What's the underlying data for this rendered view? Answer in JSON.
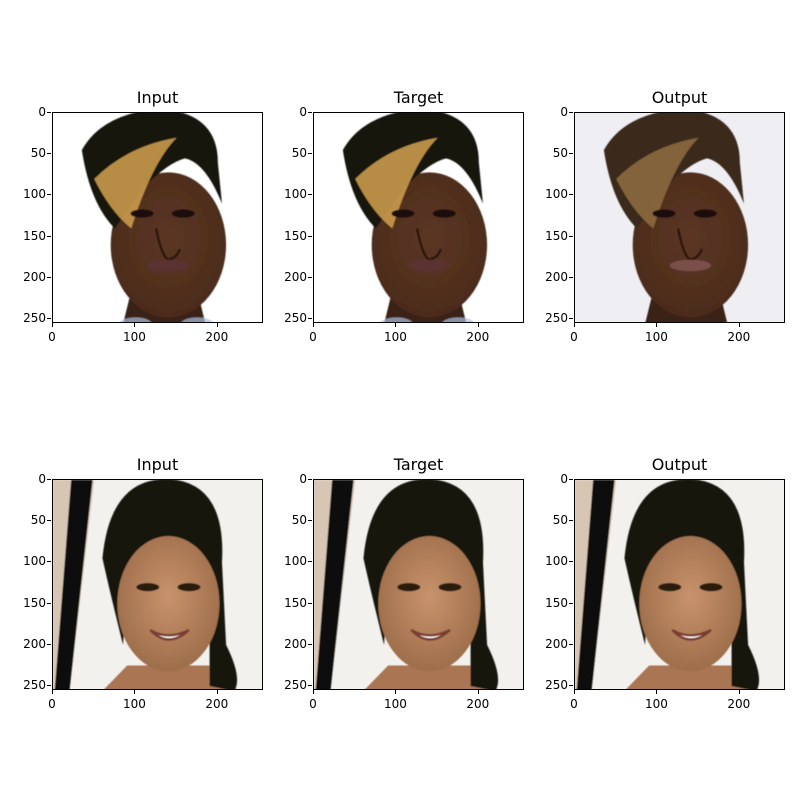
{
  "panels": [
    {
      "title": "Input",
      "variant": "face1"
    },
    {
      "title": "Target",
      "variant": "face1"
    },
    {
      "title": "Output",
      "variant": "face1_soft"
    },
    {
      "title": "Input",
      "variant": "face2"
    },
    {
      "title": "Target",
      "variant": "face2"
    },
    {
      "title": "Output",
      "variant": "face2_soft"
    }
  ],
  "axis": {
    "y_ticks": [
      "0",
      "50",
      "100",
      "150",
      "200",
      "250"
    ],
    "x_ticks": [
      "0",
      "100",
      "200"
    ]
  },
  "colors": {
    "skin_dark": "#4a2b1c",
    "hair_black": "#161210",
    "hair_highlight": "#c99a4a",
    "skin_light": "#b7845e",
    "backdrop_light": "#f3f1ee"
  }
}
